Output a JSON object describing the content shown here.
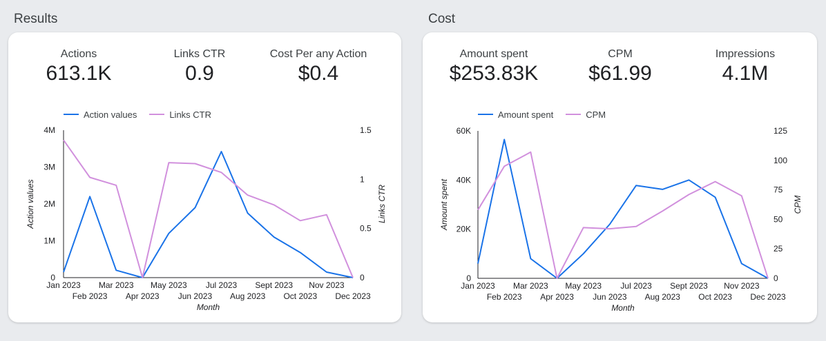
{
  "sections": {
    "results": {
      "title": "Results"
    },
    "cost": {
      "title": "Cost"
    }
  },
  "results": {
    "kpis": [
      {
        "label": "Actions",
        "value": "613.1K"
      },
      {
        "label": "Links CTR",
        "value": "0.9"
      },
      {
        "label": "Cost Per any Action",
        "value": "$0.4"
      }
    ]
  },
  "cost": {
    "kpis": [
      {
        "label": "Amount spent",
        "value": "$253.83K"
      },
      {
        "label": "CPM",
        "value": "$61.99"
      },
      {
        "label": "Impressions",
        "value": "4.1M"
      }
    ]
  },
  "colors": {
    "primary": "#1a73e8",
    "secondary": "#d190dd",
    "axis": "#202124"
  },
  "chart_data": [
    {
      "type": "line",
      "xlabel": "Month",
      "categories": [
        "Jan 2023",
        "Feb 2023",
        "Mar 2023",
        "Apr 2023",
        "May 2023",
        "Jun 2023",
        "Jul 2023",
        "Aug 2023",
        "Sept 2023",
        "Oct 2023",
        "Nov 2023",
        "Dec 2023"
      ],
      "series": [
        {
          "name": "Action values",
          "axis": "left",
          "color": "#1a73e8",
          "values": [
            150000,
            2200000,
            200000,
            0,
            1200000,
            1900000,
            3420000,
            1750000,
            1100000,
            680000,
            150000,
            0
          ]
        },
        {
          "name": "Links CTR",
          "axis": "right",
          "color": "#d190dd",
          "values": [
            1.4,
            1.02,
            0.94,
            0,
            1.17,
            1.16,
            1.07,
            0.84,
            0.74,
            0.58,
            0.64,
            0
          ]
        }
      ],
      "left_axis": {
        "label": "Action values",
        "min": 0,
        "max": 4000000,
        "ticks": [
          0,
          1000000,
          2000000,
          3000000,
          4000000
        ],
        "tick_labels": [
          "0",
          "1M",
          "2M",
          "3M",
          "4M"
        ]
      },
      "right_axis": {
        "label": "Links CTR",
        "min": 0,
        "max": 1.5,
        "ticks": [
          0,
          0.5,
          1,
          1.5
        ],
        "tick_labels": [
          "0",
          "0.5",
          "1",
          "1.5"
        ]
      }
    },
    {
      "type": "line",
      "xlabel": "Month",
      "categories": [
        "Jan 2023",
        "Feb 2023",
        "Mar 2023",
        "Apr 2023",
        "May 2023",
        "Jun 2023",
        "Jul 2023",
        "Aug 2023",
        "Sept 2023",
        "Oct 2023",
        "Nov 2023",
        "Dec 2023"
      ],
      "series": [
        {
          "name": "Amount spent",
          "axis": "left",
          "color": "#1a73e8",
          "values": [
            6000,
            56500,
            8000,
            0,
            10000,
            22000,
            37800,
            36200,
            40000,
            33000,
            6000,
            0
          ]
        },
        {
          "name": "CPM",
          "axis": "right",
          "color": "#d190dd",
          "values": [
            58,
            95,
            107,
            0,
            43,
            42,
            44,
            57,
            71,
            82,
            70,
            0
          ]
        }
      ],
      "left_axis": {
        "label": "Amount spent",
        "min": 0,
        "max": 60000,
        "ticks": [
          0,
          20000,
          40000,
          60000
        ],
        "tick_labels": [
          "0",
          "20K",
          "40K",
          "60K"
        ]
      },
      "right_axis": {
        "label": "CPM",
        "min": 0,
        "max": 125,
        "ticks": [
          0,
          25,
          50,
          75,
          100,
          125
        ],
        "tick_labels": [
          "0",
          "25",
          "50",
          "75",
          "100",
          "125"
        ]
      }
    }
  ]
}
